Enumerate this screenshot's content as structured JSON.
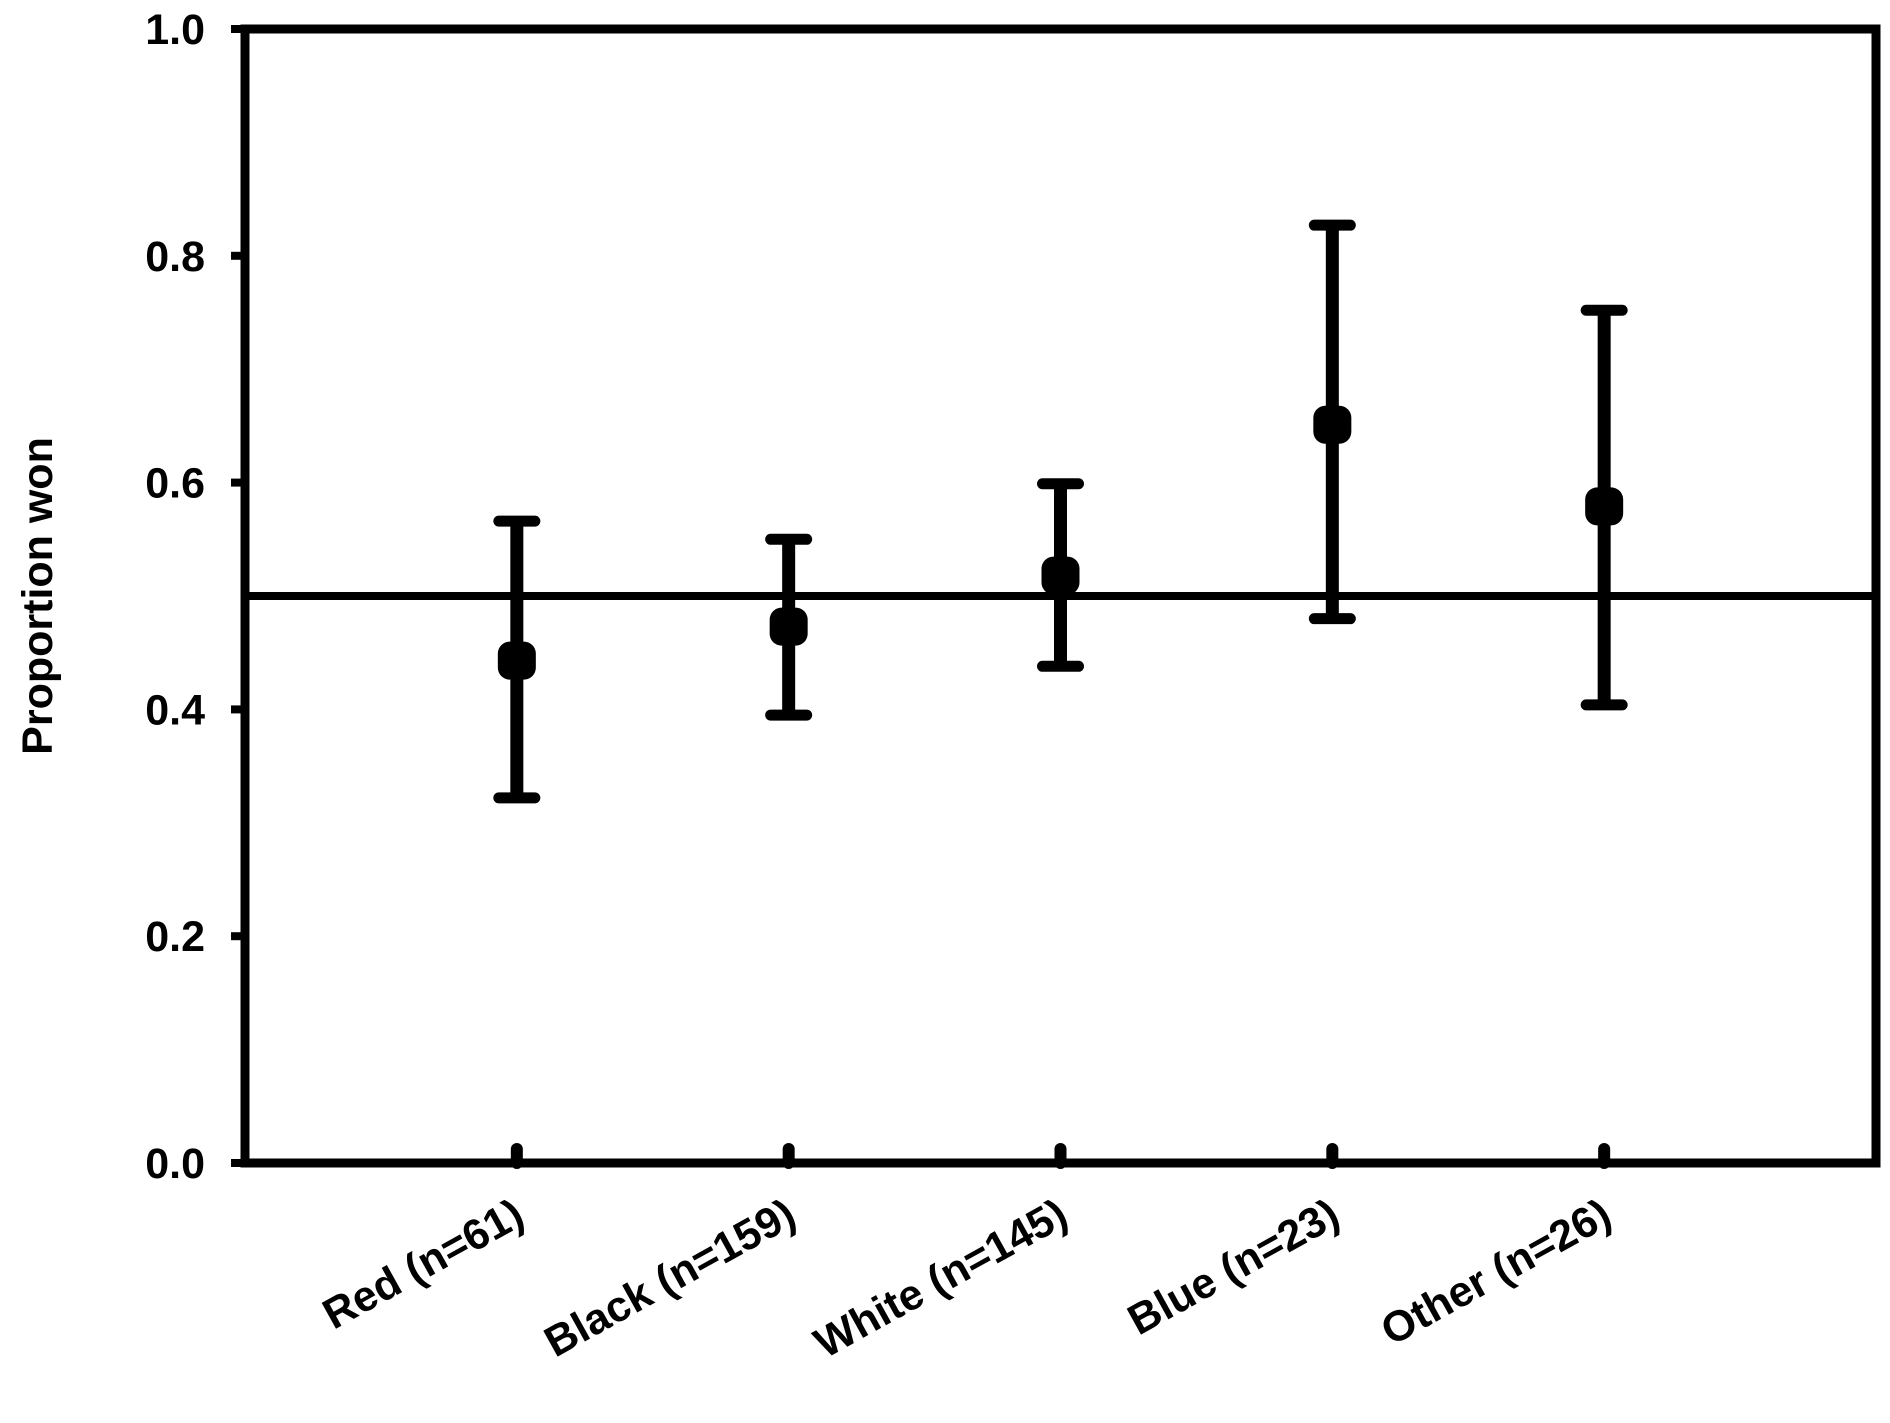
{
  "chart_data": {
    "type": "scatter",
    "title": "",
    "xlabel": "",
    "ylabel": "Proportion won",
    "ylim": [
      0,
      1.0
    ],
    "yticks": [
      "0.0",
      "0.2",
      "0.4",
      "0.6",
      "0.8",
      "1.0"
    ],
    "grid": false,
    "reference_line": 0.5,
    "categories": [
      "Red (n=61)",
      "Black (n=159)",
      "White (n=145)",
      "Blue (n=23)",
      "Other (n=26)"
    ],
    "values": [
      0.443,
      0.473,
      0.518,
      0.651,
      0.579
    ],
    "error_upper": [
      0.566,
      0.55,
      0.599,
      0.827,
      0.752
    ],
    "error_lower": [
      0.322,
      0.395,
      0.438,
      0.48,
      0.404
    ],
    "color": "#000000"
  }
}
